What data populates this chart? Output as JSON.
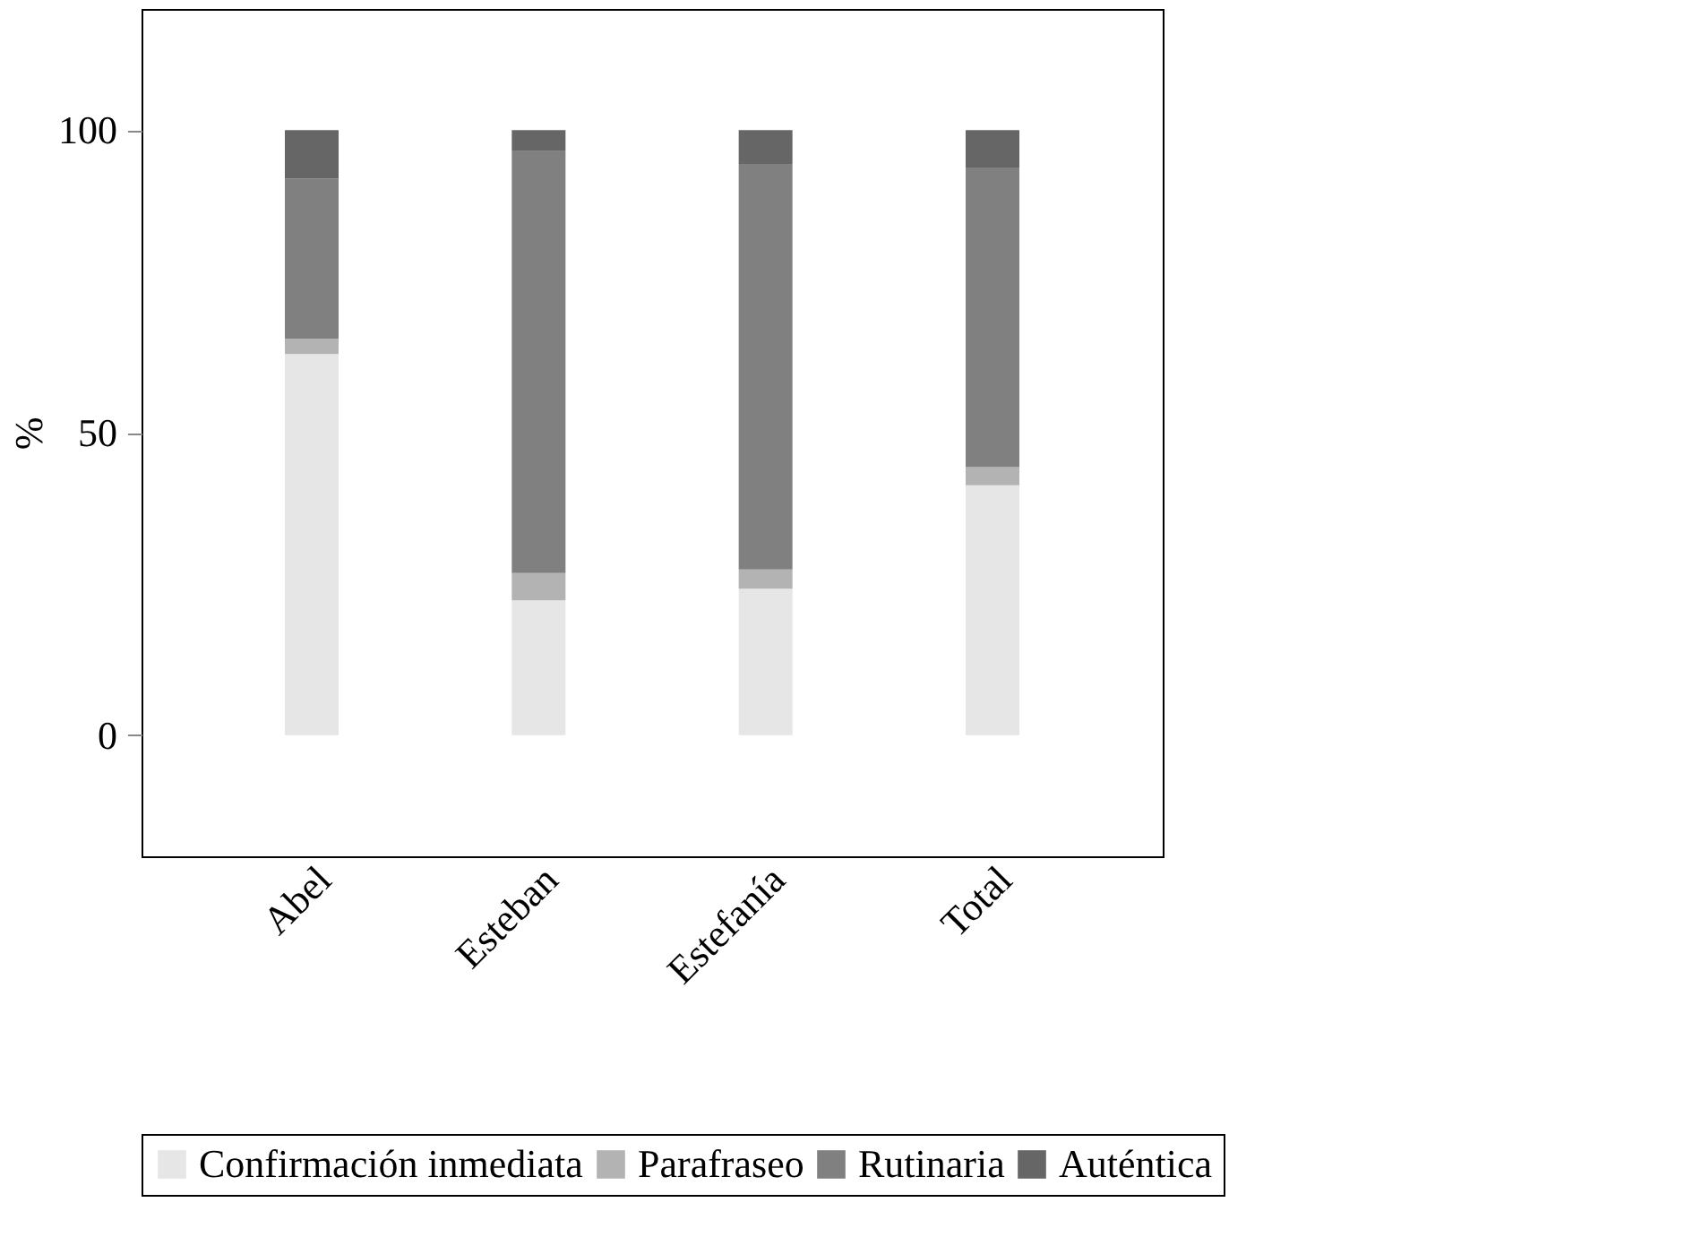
{
  "chart_data": {
    "type": "bar",
    "stacked": true,
    "ylabel": "%",
    "categories": [
      "Abel",
      "Esteban",
      "Estefanía",
      "Total"
    ],
    "series": [
      {
        "name": "Confirmación inmediata",
        "color": "#e6e6e6",
        "values": [
          63,
          22.3,
          24.2,
          41.3
        ]
      },
      {
        "name": "Parafraseo",
        "color": "#b3b3b3",
        "values": [
          2.5,
          4.5,
          3.2,
          3
        ]
      },
      {
        "name": "Rutinaria",
        "color": "#808080",
        "values": [
          26.5,
          69.7,
          67,
          49.5
        ]
      },
      {
        "name": "Auténtica",
        "color": "#666666",
        "values": [
          8,
          3.5,
          5.6,
          6.2
        ]
      }
    ],
    "ylim": [
      -20,
      120
    ],
    "yticks": [
      0,
      50,
      100
    ],
    "grid": false,
    "legend": "bottom"
  }
}
